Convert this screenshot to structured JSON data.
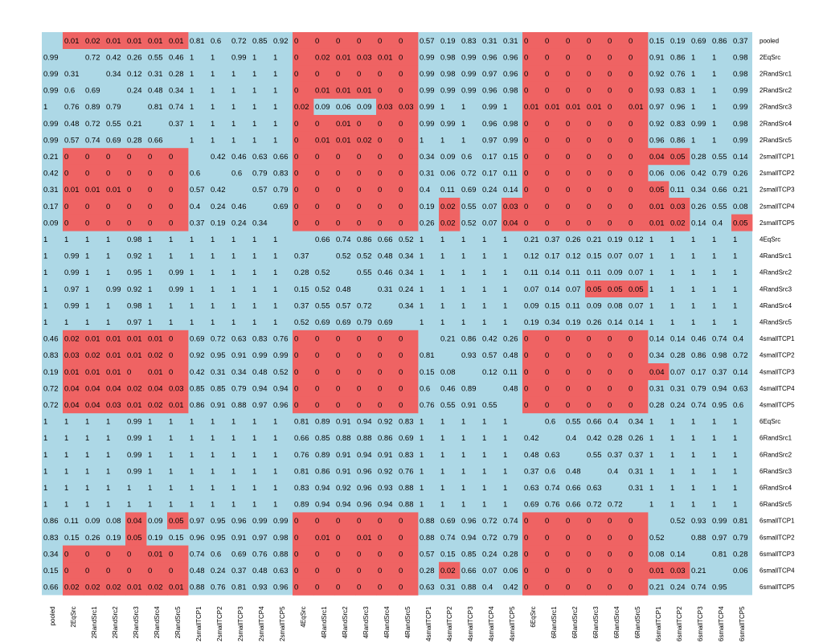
{
  "chart_data": {
    "type": "heatmap",
    "title": "",
    "labels": [
      "pooled",
      "2EqSrc",
      "2RandSrc1",
      "2RandSrc2",
      "2RandSrc3",
      "2RandSrc4",
      "2RandSrc5",
      "2smallTCP1",
      "2smallTCP2",
      "2smallTCP3",
      "2smallTCP4",
      "2smallTCP5",
      "4EqSrc",
      "4RandSrc1",
      "4RandSrc2",
      "4RandSrc3",
      "4RandSrc4",
      "4RandSrc5",
      "4smallTCP1",
      "4smallTCP2",
      "4smallTCP3",
      "4smallTCP4",
      "4smallTCP5",
      "6EqSrc",
      "6RandSrc1",
      "6RandSrc2",
      "6RandSrc3",
      "6RandSrc4",
      "6RandSrc5",
      "6smallTCP1",
      "6smallTCP2",
      "6smallTCP3",
      "6smallTCP4",
      "6smallTCP5"
    ],
    "rows": [
      [
        null,
        "0.01",
        "0.02",
        "0.01",
        "0.01",
        "0.01",
        "0.01",
        "0.81",
        "0.6",
        "0.72",
        "0.85",
        "0.92",
        "0",
        "0",
        "0",
        "0",
        "0",
        "0",
        "0.57",
        "0.19",
        "0.83",
        "0.31",
        "0.31",
        "0",
        "0",
        "0",
        "0",
        "0",
        "0",
        "0.15",
        "0.19",
        "0.69",
        "0.86",
        "0.37"
      ],
      [
        "0.99",
        null,
        "0.72",
        "0.42",
        "0.26",
        "0.55",
        "0.46",
        "1",
        "1",
        "0.99",
        "1",
        "1",
        "0",
        "0.02",
        "0.01",
        "0.03",
        "0.01",
        "0",
        "0.99",
        "0.98",
        "0.99",
        "0.96",
        "0.96",
        "0",
        "0",
        "0",
        "0",
        "0",
        "0",
        "0.91",
        "0.86",
        "1",
        "1",
        "0.98"
      ],
      [
        "0.99",
        "0.31",
        null,
        "0.34",
        "0.12",
        "0.31",
        "0.28",
        "1",
        "1",
        "1",
        "1",
        "1",
        "0",
        "0",
        "0",
        "0",
        "0",
        "0",
        "0.99",
        "0.98",
        "0.99",
        "0.97",
        "0.96",
        "0",
        "0",
        "0",
        "0",
        "0",
        "0",
        "0.92",
        "0.76",
        "1",
        "1",
        "0.98"
      ],
      [
        "0.99",
        "0.6",
        "0.69",
        null,
        "0.24",
        "0.48",
        "0.34",
        "1",
        "1",
        "1",
        "1",
        "1",
        "0",
        "0.01",
        "0.01",
        "0.01",
        "0",
        "0",
        "0.99",
        "0.99",
        "0.99",
        "0.96",
        "0.98",
        "0",
        "0",
        "0",
        "0",
        "0",
        "0",
        "0.93",
        "0.83",
        "1",
        "1",
        "0.99"
      ],
      [
        "1",
        "0.76",
        "0.89",
        "0.79",
        null,
        "0.81",
        "0.74",
        "1",
        "1",
        "1",
        "1",
        "1",
        "0.02",
        "0.09",
        "0.06",
        "0.09",
        "0.03",
        "0.03",
        "0.99",
        "1",
        "1",
        "0.99",
        "1",
        "0.01",
        "0.01",
        "0.01",
        "0.01",
        "0",
        "0.01",
        "0.97",
        "0.96",
        "1",
        "1",
        "0.99"
      ],
      [
        "0.99",
        "0.48",
        "0.72",
        "0.55",
        "0.21",
        null,
        "0.37",
        "1",
        "1",
        "1",
        "1",
        "1",
        "0",
        "0",
        "0.01",
        "0",
        "0",
        "0",
        "0.99",
        "0.99",
        "1",
        "0.96",
        "0.98",
        "0",
        "0",
        "0",
        "0",
        "0",
        "0",
        "0.92",
        "0.83",
        "0.99",
        "1",
        "0.98"
      ],
      [
        "0.99",
        "0.57",
        "0.74",
        "0.69",
        "0.28",
        "0.66",
        null,
        "1",
        "1",
        "1",
        "1",
        "1",
        "0",
        "0.01",
        "0.01",
        "0.02",
        "0",
        "0",
        "1",
        "1",
        "1",
        "0.97",
        "0.99",
        "0",
        "0",
        "0",
        "0",
        "0",
        "0",
        "0.96",
        "0.86",
        "1",
        "1",
        "0.99"
      ],
      [
        "0.21",
        "0",
        "0",
        "0",
        "0",
        "0",
        "0",
        null,
        "0.42",
        "0.46",
        "0.63",
        "0.66",
        "0",
        "0",
        "0",
        "0",
        "0",
        "0",
        "0.34",
        "0.09",
        "0.6",
        "0.17",
        "0.15",
        "0",
        "0",
        "0",
        "0",
        "0",
        "0",
        "0.04",
        "0.05",
        "0.28",
        "0.55",
        "0.14"
      ],
      [
        "0.42",
        "0",
        "0",
        "0",
        "0",
        "0",
        "0",
        "0.6",
        null,
        "0.6",
        "0.79",
        "0.83",
        "0",
        "0",
        "0",
        "0",
        "0",
        "0",
        "0.31",
        "0.06",
        "0.72",
        "0.17",
        "0.11",
        "0",
        "0",
        "0",
        "0",
        "0",
        "0",
        "0.06",
        "0.06",
        "0.42",
        "0.79",
        "0.26"
      ],
      [
        "0.31",
        "0.01",
        "0.01",
        "0.01",
        "0",
        "0",
        "0",
        "0.57",
        "0.42",
        null,
        "0.57",
        "0.79",
        "0",
        "0",
        "0",
        "0",
        "0",
        "0",
        "0.4",
        "0.11",
        "0.69",
        "0.24",
        "0.14",
        "0",
        "0",
        "0",
        "0",
        "0",
        "0",
        "0.05",
        "0.11",
        "0.34",
        "0.66",
        "0.21"
      ],
      [
        "0.17",
        "0",
        "0",
        "0",
        "0",
        "0",
        "0",
        "0.4",
        "0.24",
        "0.46",
        null,
        "0.69",
        "0",
        "0",
        "0",
        "0",
        "0",
        "0",
        "0.19",
        "0.02",
        "0.55",
        "0.07",
        "0.03",
        "0",
        "0",
        "0",
        "0",
        "0",
        "0",
        "0.01",
        "0.03",
        "0.26",
        "0.55",
        "0.08"
      ],
      [
        "0.09",
        "0",
        "0",
        "0",
        "0",
        "0",
        "0",
        "0.37",
        "0.19",
        "0.24",
        "0.34",
        null,
        "0",
        "0",
        "0",
        "0",
        "0",
        "0",
        "0.26",
        "0.02",
        "0.52",
        "0.07",
        "0.04",
        "0",
        "0",
        "0",
        "0",
        "0",
        "0",
        "0.01",
        "0.02",
        "0.14",
        "0.4",
        "0.05"
      ],
      [
        "1",
        "1",
        "1",
        "1",
        "0.98",
        "1",
        "1",
        "1",
        "1",
        "1",
        "1",
        "1",
        null,
        "0.66",
        "0.74",
        "0.86",
        "0.66",
        "0.52",
        "1",
        "1",
        "1",
        "1",
        "1",
        "0.21",
        "0.37",
        "0.26",
        "0.21",
        "0.19",
        "0.12",
        "1",
        "1",
        "1",
        "1",
        "1"
      ],
      [
        "1",
        "0.99",
        "1",
        "1",
        "0.92",
        "1",
        "1",
        "1",
        "1",
        "1",
        "1",
        "1",
        "0.37",
        null,
        "0.52",
        "0.52",
        "0.48",
        "0.34",
        "1",
        "1",
        "1",
        "1",
        "1",
        "0.12",
        "0.17",
        "0.12",
        "0.15",
        "0.07",
        "0.07",
        "1",
        "1",
        "1",
        "1",
        "1"
      ],
      [
        "1",
        "0.99",
        "1",
        "1",
        "0.95",
        "1",
        "0.99",
        "1",
        "1",
        "1",
        "1",
        "1",
        "0.28",
        "0.52",
        null,
        "0.55",
        "0.46",
        "0.34",
        "1",
        "1",
        "1",
        "1",
        "1",
        "0.11",
        "0.14",
        "0.11",
        "0.11",
        "0.09",
        "0.07",
        "1",
        "1",
        "1",
        "1",
        "1"
      ],
      [
        "1",
        "0.97",
        "1",
        "0.99",
        "0.92",
        "1",
        "0.99",
        "1",
        "1",
        "1",
        "1",
        "1",
        "0.15",
        "0.52",
        "0.48",
        null,
        "0.31",
        "0.24",
        "1",
        "1",
        "1",
        "1",
        "1",
        "0.07",
        "0.14",
        "0.07",
        "0.05",
        "0.05",
        "0.05",
        "1",
        "1",
        "1",
        "1",
        "1"
      ],
      [
        "1",
        "0.99",
        "1",
        "1",
        "0.98",
        "1",
        "1",
        "1",
        "1",
        "1",
        "1",
        "1",
        "0.37",
        "0.55",
        "0.57",
        "0.72",
        null,
        "0.34",
        "1",
        "1",
        "1",
        "1",
        "1",
        "0.09",
        "0.15",
        "0.11",
        "0.09",
        "0.08",
        "0.07",
        "1",
        "1",
        "1",
        "1",
        "1"
      ],
      [
        "1",
        "1",
        "1",
        "1",
        "0.97",
        "1",
        "1",
        "1",
        "1",
        "1",
        "1",
        "1",
        "0.52",
        "0.69",
        "0.69",
        "0.79",
        "0.69",
        null,
        "1",
        "1",
        "1",
        "1",
        "1",
        "0.19",
        "0.34",
        "0.19",
        "0.26",
        "0.14",
        "0.14",
        "1",
        "1",
        "1",
        "1",
        "1"
      ],
      [
        "0.46",
        "0.02",
        "0.01",
        "0.01",
        "0.01",
        "0.01",
        "0",
        "0.69",
        "0.72",
        "0.63",
        "0.83",
        "0.76",
        "0",
        "0",
        "0",
        "0",
        "0",
        "0",
        null,
        "0.21",
        "0.86",
        "0.42",
        "0.26",
        "0",
        "0",
        "0",
        "0",
        "0",
        "0",
        "0.14",
        "0.14",
        "0.46",
        "0.74",
        "0.4"
      ],
      [
        "0.83",
        "0.03",
        "0.02",
        "0.01",
        "0.01",
        "0.02",
        "0",
        "0.92",
        "0.95",
        "0.91",
        "0.99",
        "0.99",
        "0",
        "0",
        "0",
        "0",
        "0",
        "0",
        "0.81",
        null,
        "0.93",
        "0.57",
        "0.48",
        "0",
        "0",
        "0",
        "0",
        "0",
        "0",
        "0.34",
        "0.28",
        "0.86",
        "0.98",
        "0.72"
      ],
      [
        "0.19",
        "0.01",
        "0.01",
        "0.01",
        "0",
        "0.01",
        "0",
        "0.42",
        "0.31",
        "0.34",
        "0.48",
        "0.52",
        "0",
        "0",
        "0",
        "0",
        "0",
        "0",
        "0.15",
        "0.08",
        null,
        "0.12",
        "0.11",
        "0",
        "0",
        "0",
        "0",
        "0",
        "0",
        "0.04",
        "0.07",
        "0.17",
        "0.37",
        "0.14"
      ],
      [
        "0.72",
        "0.04",
        "0.04",
        "0.04",
        "0.02",
        "0.04",
        "0.03",
        "0.85",
        "0.85",
        "0.79",
        "0.94",
        "0.94",
        "0",
        "0",
        "0",
        "0",
        "0",
        "0",
        "0.6",
        "0.46",
        "0.89",
        null,
        "0.48",
        "0",
        "0",
        "0",
        "0",
        "0",
        "0",
        "0.31",
        "0.31",
        "0.79",
        "0.94",
        "0.63"
      ],
      [
        "0.72",
        "0.04",
        "0.04",
        "0.03",
        "0.01",
        "0.02",
        "0.01",
        "0.86",
        "0.91",
        "0.88",
        "0.97",
        "0.96",
        "0",
        "0",
        "0",
        "0",
        "0",
        "0",
        "0.76",
        "0.55",
        "0.91",
        "0.55",
        null,
        "0",
        "0",
        "0",
        "0",
        "0",
        "0",
        "0.28",
        "0.24",
        "0.74",
        "0.95",
        "0.6"
      ],
      [
        "1",
        "1",
        "1",
        "1",
        "0.99",
        "1",
        "1",
        "1",
        "1",
        "1",
        "1",
        "1",
        "0.81",
        "0.89",
        "0.91",
        "0.94",
        "0.92",
        "0.83",
        "1",
        "1",
        "1",
        "1",
        "1",
        null,
        "0.6",
        "0.55",
        "0.66",
        "0.4",
        "0.34",
        "1",
        "1",
        "1",
        "1",
        "1"
      ],
      [
        "1",
        "1",
        "1",
        "1",
        "0.99",
        "1",
        "1",
        "1",
        "1",
        "1",
        "1",
        "1",
        "0.66",
        "0.85",
        "0.88",
        "0.88",
        "0.86",
        "0.69",
        "1",
        "1",
        "1",
        "1",
        "1",
        "0.42",
        null,
        "0.4",
        "0.42",
        "0.28",
        "0.26",
        "1",
        "1",
        "1",
        "1",
        "1"
      ],
      [
        "1",
        "1",
        "1",
        "1",
        "0.99",
        "1",
        "1",
        "1",
        "1",
        "1",
        "1",
        "1",
        "0.76",
        "0.89",
        "0.91",
        "0.94",
        "0.91",
        "0.83",
        "1",
        "1",
        "1",
        "1",
        "1",
        "0.48",
        "0.63",
        null,
        "0.55",
        "0.37",
        "0.37",
        "1",
        "1",
        "1",
        "1",
        "1"
      ],
      [
        "1",
        "1",
        "1",
        "1",
        "0.99",
        "1",
        "1",
        "1",
        "1",
        "1",
        "1",
        "1",
        "0.81",
        "0.86",
        "0.91",
        "0.96",
        "0.92",
        "0.76",
        "1",
        "1",
        "1",
        "1",
        "1",
        "0.37",
        "0.6",
        "0.48",
        null,
        "0.4",
        "0.31",
        "1",
        "1",
        "1",
        "1",
        "1"
      ],
      [
        "1",
        "1",
        "1",
        "1",
        "1",
        "1",
        "1",
        "1",
        "1",
        "1",
        "1",
        "1",
        "0.83",
        "0.94",
        "0.92",
        "0.96",
        "0.93",
        "0.88",
        "1",
        "1",
        "1",
        "1",
        "1",
        "0.63",
        "0.74",
        "0.66",
        "0.63",
        null,
        "0.31",
        "1",
        "1",
        "1",
        "1",
        "1"
      ],
      [
        "1",
        "1",
        "1",
        "1",
        "1",
        "1",
        "1",
        "1",
        "1",
        "1",
        "1",
        "1",
        "0.89",
        "0.94",
        "0.94",
        "0.96",
        "0.94",
        "0.88",
        "1",
        "1",
        "1",
        "1",
        "1",
        "0.69",
        "0.76",
        "0.66",
        "0.72",
        "0.72",
        null,
        "1",
        "1",
        "1",
        "1",
        "1"
      ],
      [
        "0.86",
        "0.11",
        "0.09",
        "0.08",
        "0.04",
        "0.09",
        "0.05",
        "0.97",
        "0.95",
        "0.96",
        "0.99",
        "0.99",
        "0",
        "0",
        "0",
        "0",
        "0",
        "0",
        "0.88",
        "0.69",
        "0.96",
        "0.72",
        "0.74",
        "0",
        "0",
        "0",
        "0",
        "0",
        "0",
        null,
        "0.52",
        "0.93",
        "0.99",
        "0.81"
      ],
      [
        "0.83",
        "0.15",
        "0.26",
        "0.19",
        "0.05",
        "0.19",
        "0.15",
        "0.96",
        "0.95",
        "0.91",
        "0.97",
        "0.98",
        "0",
        "0.01",
        "0",
        "0.01",
        "0",
        "0",
        "0.88",
        "0.74",
        "0.94",
        "0.72",
        "0.79",
        "0",
        "0",
        "0",
        "0",
        "0",
        "0",
        "0.52",
        null,
        "0.88",
        "0.97",
        "0.79"
      ],
      [
        "0.34",
        "0",
        "0",
        "0",
        "0",
        "0.01",
        "0",
        "0.74",
        "0.6",
        "0.69",
        "0.76",
        "0.88",
        "0",
        "0",
        "0",
        "0",
        "0",
        "0",
        "0.57",
        "0.15",
        "0.85",
        "0.24",
        "0.28",
        "0",
        "0",
        "0",
        "0",
        "0",
        "0",
        "0.08",
        "0.14",
        null,
        "0.81",
        "0.28"
      ],
      [
        "0.15",
        "0",
        "0",
        "0",
        "0",
        "0",
        "0",
        "0.48",
        "0.24",
        "0.37",
        "0.48",
        "0.63",
        "0",
        "0",
        "0",
        "0",
        "0",
        "0",
        "0.28",
        "0.02",
        "0.66",
        "0.07",
        "0.06",
        "0",
        "0",
        "0",
        "0",
        "0",
        "0",
        "0.01",
        "0.03",
        "0.21",
        null,
        "0.06"
      ],
      [
        "0.66",
        "0.02",
        "0.02",
        "0.02",
        "0.01",
        "0.02",
        "0.01",
        "0.88",
        "0.76",
        "0.81",
        "0.93",
        "0.96",
        "0",
        "0",
        "0",
        "0",
        "0",
        "0",
        "0.63",
        "0.31",
        "0.88",
        "0.4",
        "0.42",
        "0",
        "0",
        "0",
        "0",
        "0",
        "0",
        "0.21",
        "0.24",
        "0.74",
        "0.95",
        null
      ]
    ],
    "threshold": 0.05,
    "grid": false,
    "colors": {
      "significant": "#ef6363",
      "not_significant": "#add8e6",
      "text": "#000000"
    }
  }
}
